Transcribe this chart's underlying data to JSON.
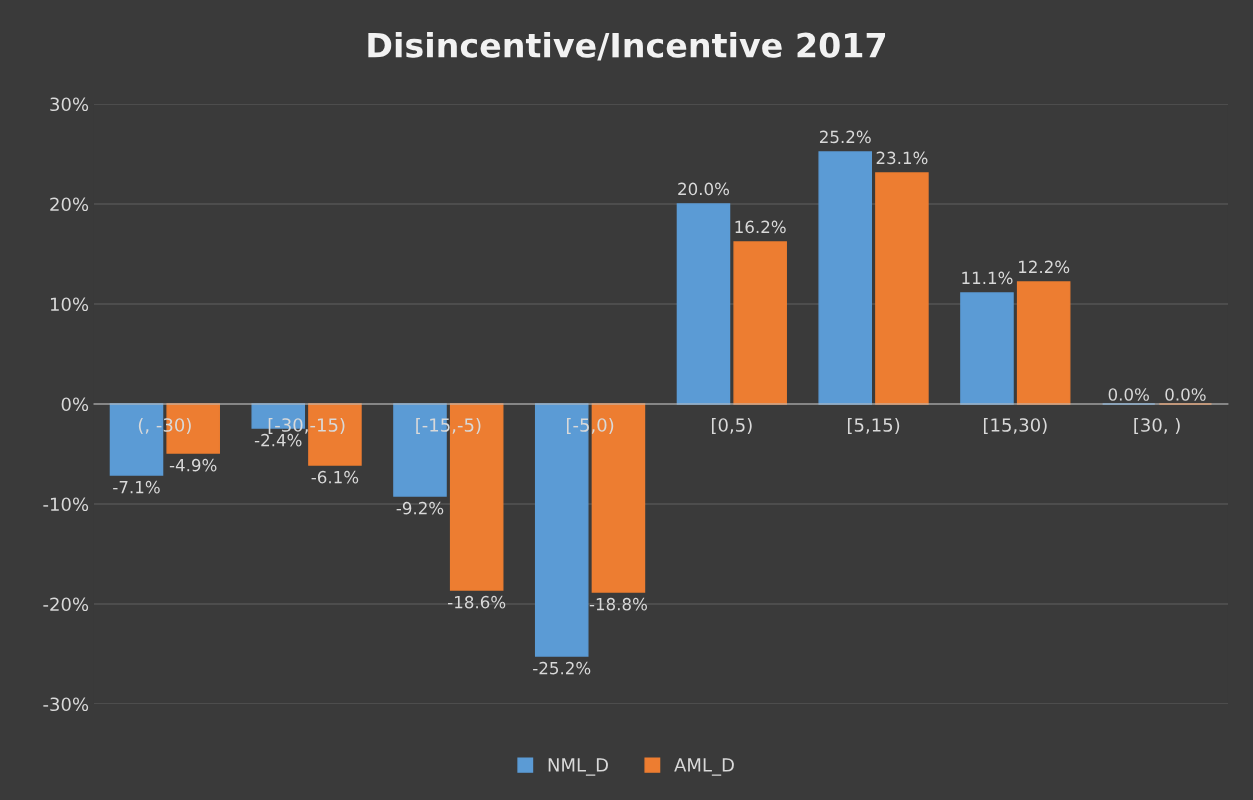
{
  "chart_data": {
    "type": "bar",
    "title": "Disincentive/Incentive 2017",
    "categories": [
      "(, -30)",
      "[-30,-15)",
      "[-15,-5)",
      "[-5,0)",
      "[0,5)",
      "[5,15)",
      "[15,30)",
      "[30, )"
    ],
    "series": [
      {
        "name": "NML_D",
        "color": "#5b9bd5",
        "values": [
          -7.1,
          -2.4,
          -9.2,
          -25.2,
          20.0,
          25.2,
          11.1,
          0.0
        ],
        "value_labels": [
          "-7.1%",
          "-2.4%",
          "-9.2%",
          "-25.2%",
          "20.0%",
          "25.2%",
          "11.1%",
          "0.0%"
        ]
      },
      {
        "name": "AML_D",
        "color": "#ed7d31",
        "values": [
          -4.9,
          -6.1,
          -18.6,
          -18.8,
          16.2,
          23.1,
          12.2,
          0.0
        ],
        "value_labels": [
          "-4.9%",
          "-6.1%",
          "-18.6%",
          "-18.8%",
          "16.2%",
          "23.1%",
          "12.2%",
          "0.0%"
        ]
      }
    ],
    "ylim": [
      -30,
      30
    ],
    "yticks": [
      {
        "value": -30,
        "label": "-30%"
      },
      {
        "value": -20,
        "label": "-20%"
      },
      {
        "value": -10,
        "label": "-10%"
      },
      {
        "value": 0,
        "label": "0%"
      },
      {
        "value": 10,
        "label": "10%"
      },
      {
        "value": 20,
        "label": "20%"
      },
      {
        "value": 30,
        "label": "30%"
      }
    ],
    "grid": "y",
    "legend": "bottom"
  }
}
